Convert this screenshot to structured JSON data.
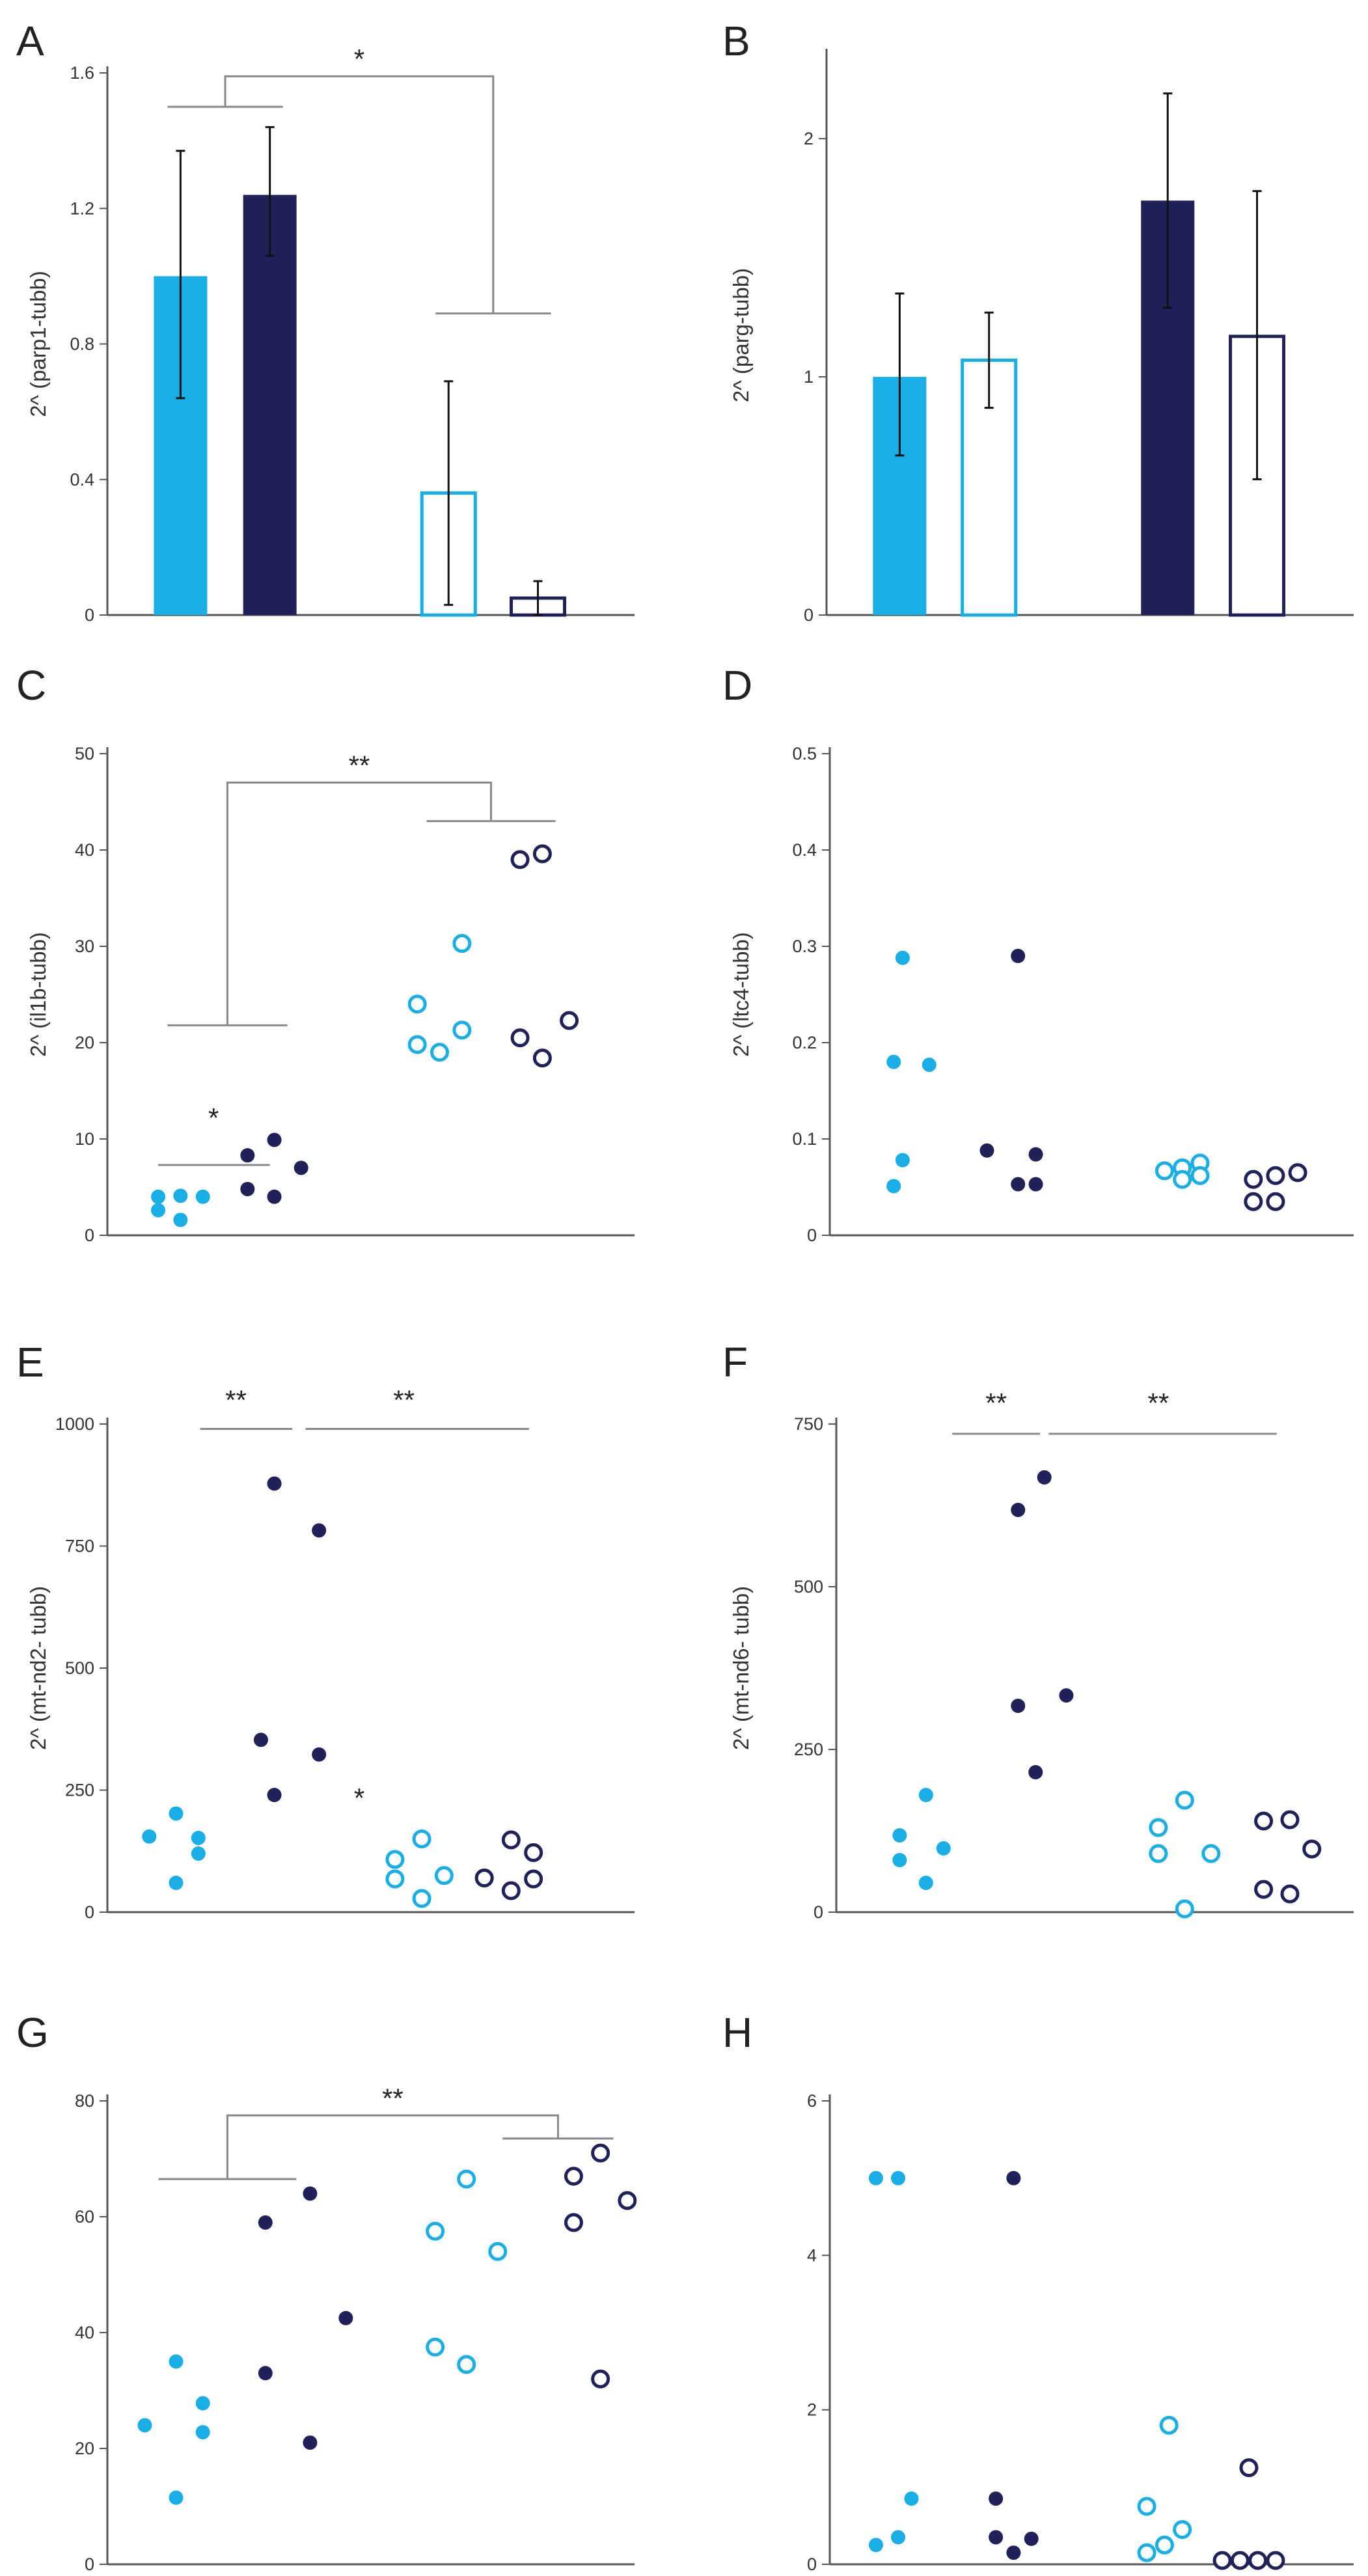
{
  "colors": {
    "light": "#1aaee6",
    "dark": "#1f2158",
    "axis": "#555555",
    "bracket": "#888888",
    "error": "#111111"
  },
  "panels": [
    {
      "letter": "A",
      "type": "bar",
      "ylabel": "2^ (parp1-tubb)",
      "ylim": [
        0,
        1.6
      ],
      "ticks": [
        {
          "v": 0,
          "t": "0"
        },
        {
          "v": 0.4,
          "t": "0.4"
        },
        {
          "v": 0.8,
          "t": "0.8"
        },
        {
          "v": 1.2,
          "t": "1.2"
        },
        {
          "v": 1.6,
          "t": "1.6"
        }
      ],
      "bars": [
        {
          "slot": 0.6,
          "value": 1.0,
          "err": [
            0.64,
            1.37
          ],
          "fill": "light"
        },
        {
          "slot": 1.6,
          "value": 1.24,
          "err": [
            1.06,
            1.44
          ],
          "fill": "dark"
        },
        {
          "slot": 3.6,
          "value": 0.36,
          "err": [
            0.03,
            0.69
          ],
          "fill": "none",
          "stroke": "light"
        },
        {
          "slot": 4.6,
          "value": 0.05,
          "err": [
            0.0,
            0.1
          ],
          "fill": "none",
          "stroke": "dark"
        }
      ],
      "brackets": [
        {
          "x1": 0.6,
          "x2": 1.6,
          "y": 1.5,
          "x3": 3.6,
          "x4": 4.6,
          "y2": 0.89,
          "top": 1.59,
          "label": "*"
        }
      ],
      "lines": []
    },
    {
      "letter": "B",
      "type": "bar",
      "ylabel": "2^ (parg-tubb)",
      "ylim": [
        0,
        2.35
      ],
      "ticks": [
        {
          "v": 0,
          "t": "0"
        },
        {
          "v": 1,
          "t": "1"
        },
        {
          "v": 2,
          "t": "2"
        }
      ],
      "bars": [
        {
          "slot": 0.6,
          "value": 1.0,
          "err": [
            0.67,
            1.35
          ],
          "fill": "light"
        },
        {
          "slot": 1.6,
          "value": 1.07,
          "err": [
            0.87,
            1.27
          ],
          "fill": "none",
          "stroke": "light"
        },
        {
          "slot": 3.6,
          "value": 1.74,
          "err": [
            1.29,
            2.19
          ],
          "fill": "dark"
        },
        {
          "slot": 4.6,
          "value": 1.17,
          "err": [
            0.57,
            1.78
          ],
          "fill": "none",
          "stroke": "dark"
        }
      ],
      "brackets": [],
      "lines": []
    },
    {
      "letter": "C",
      "type": "scatter",
      "ylabel": "2^ (il1b-tubb)",
      "ylim": [
        0,
        50
      ],
      "ticks": [
        {
          "v": 0,
          "t": "0"
        },
        {
          "v": 10,
          "t": "10"
        },
        {
          "v": 20,
          "t": "20"
        },
        {
          "v": 30,
          "t": "30"
        },
        {
          "v": 40,
          "t": "40"
        },
        {
          "v": 50,
          "t": "50"
        }
      ],
      "groups": [
        {
          "style": "light-filled",
          "points": [
            [
              0.35,
              4.0
            ],
            [
              0.35,
              2.6
            ],
            [
              0.6,
              4.1
            ],
            [
              0.6,
              1.6
            ],
            [
              0.85,
              4.0
            ]
          ]
        },
        {
          "style": "dark-filled",
          "points": [
            [
              1.35,
              8.3
            ],
            [
              1.35,
              4.8
            ],
            [
              1.65,
              9.9
            ],
            [
              1.65,
              4.0
            ],
            [
              1.95,
              7.0
            ]
          ]
        },
        {
          "style": "light-open",
          "points": [
            [
              3.25,
              24.0
            ],
            [
              3.25,
              19.8
            ],
            [
              3.5,
              19.0
            ],
            [
              3.75,
              30.3
            ],
            [
              3.75,
              21.3
            ]
          ]
        },
        {
          "style": "dark-open",
          "points": [
            [
              4.4,
              39.0
            ],
            [
              4.65,
              39.6
            ],
            [
              4.4,
              20.5
            ],
            [
              4.65,
              18.4
            ],
            [
              4.95,
              22.3
            ]
          ]
        }
      ],
      "brackets": [
        {
          "x1": 0.6,
          "x2": 1.65,
          "y": 21.8,
          "x3": 3.5,
          "x4": 4.65,
          "y2": 43.0,
          "top": 47.0,
          "label": "**"
        }
      ],
      "lines": [
        {
          "x1": 0.35,
          "x2": 1.6,
          "y": 7.3,
          "label": "*",
          "lx": 0.97,
          "ly": 11.2
        }
      ]
    },
    {
      "letter": "D",
      "type": "scatter",
      "ylabel": "2^ (ltc4-tubb)",
      "ylim": [
        0,
        0.5
      ],
      "ticks": [
        {
          "v": 0,
          "t": "0"
        },
        {
          "v": 0.1,
          "t": "0.1"
        },
        {
          "v": 0.2,
          "t": "0.2"
        },
        {
          "v": 0.3,
          "t": "0.3"
        },
        {
          "v": 0.4,
          "t": "0.4"
        },
        {
          "v": 0.5,
          "t": "0.5"
        }
      ],
      "groups": [
        {
          "style": "light-filled",
          "points": [
            [
              0.6,
              0.288
            ],
            [
              0.5,
              0.18
            ],
            [
              0.9,
              0.177
            ],
            [
              0.6,
              0.078
            ],
            [
              0.5,
              0.051
            ]
          ]
        },
        {
          "style": "dark-filled",
          "points": [
            [
              1.9,
              0.29
            ],
            [
              1.55,
              0.088
            ],
            [
              2.1,
              0.084
            ],
            [
              1.9,
              0.053
            ],
            [
              2.1,
              0.053
            ]
          ]
        },
        {
          "style": "light-open",
          "points": [
            [
              3.55,
              0.067
            ],
            [
              3.75,
              0.07
            ],
            [
              3.95,
              0.075
            ],
            [
              3.75,
              0.058
            ],
            [
              3.95,
              0.062
            ]
          ]
        },
        {
          "style": "dark-open",
          "points": [
            [
              4.55,
              0.058
            ],
            [
              4.8,
              0.062
            ],
            [
              5.05,
              0.065
            ],
            [
              4.55,
              0.035
            ],
            [
              4.8,
              0.035
            ]
          ]
        }
      ],
      "brackets": [],
      "lines": []
    },
    {
      "letter": "E",
      "type": "scatter",
      "ylabel": "2^ (mt-nd2- tubb)",
      "ylim": [
        0,
        1000
      ],
      "ticks": [
        {
          "v": 0,
          "t": "0"
        },
        {
          "v": 250,
          "t": "250"
        },
        {
          "v": 500,
          "t": "500"
        },
        {
          "v": 750,
          "t": "750"
        },
        {
          "v": 1000,
          "t": "1000"
        }
      ],
      "groups": [
        {
          "style": "light-filled",
          "points": [
            [
              0.25,
              155
            ],
            [
              0.55,
              202
            ],
            [
              0.8,
              152
            ],
            [
              0.8,
              120
            ],
            [
              0.55,
              60
            ]
          ]
        },
        {
          "style": "dark-filled",
          "points": [
            [
              1.65,
              878
            ],
            [
              2.15,
              782
            ],
            [
              1.5,
              353
            ],
            [
              2.15,
              323
            ],
            [
              1.65,
              240
            ]
          ]
        },
        {
          "style": "light-open",
          "points": [
            [
              3.0,
              108
            ],
            [
              3.0,
              68
            ],
            [
              3.3,
              150
            ],
            [
              3.3,
              28
            ],
            [
              3.55,
              75
            ]
          ]
        },
        {
          "style": "dark-open",
          "points": [
            [
              4.3,
              148
            ],
            [
              4.55,
              122
            ],
            [
              4.0,
              70
            ],
            [
              4.3,
              44
            ],
            [
              4.55,
              68
            ]
          ]
        }
      ],
      "brackets": [],
      "lines": [
        {
          "x1": 0.82,
          "x2": 1.85,
          "y": 990,
          "label": "**",
          "lx": 1.22,
          "ly": 1030
        },
        {
          "x1": 2.0,
          "x2": 4.5,
          "y": 990,
          "label": "**",
          "lx": 3.1,
          "ly": 1030
        }
      ],
      "notes": [
        {
          "x": 2.6,
          "y": 215,
          "text": "*"
        }
      ]
    },
    {
      "letter": "F",
      "type": "scatter",
      "ylabel": "2^ (mt-nd6- tubb)",
      "ylim": [
        0,
        750
      ],
      "ticks": [
        {
          "v": 0,
          "t": "0"
        },
        {
          "v": 250,
          "t": "250"
        },
        {
          "v": 500,
          "t": "500"
        },
        {
          "v": 750,
          "t": "750"
        }
      ],
      "groups": [
        {
          "style": "light-filled",
          "points": [
            [
              0.5,
              118
            ],
            [
              0.8,
              180
            ],
            [
              0.5,
              80
            ],
            [
              1.0,
              98
            ],
            [
              0.8,
              45
            ]
          ]
        },
        {
          "style": "dark-filled",
          "points": [
            [
              1.85,
              618
            ],
            [
              2.15,
              668
            ],
            [
              1.85,
              317
            ],
            [
              2.4,
              333
            ],
            [
              2.05,
              215
            ]
          ]
        },
        {
          "style": "light-open",
          "points": [
            [
              3.45,
              130
            ],
            [
              3.75,
              172
            ],
            [
              3.45,
              90
            ],
            [
              4.05,
              90
            ],
            [
              3.75,
              5
            ]
          ]
        },
        {
          "style": "dark-open",
          "points": [
            [
              4.65,
              140
            ],
            [
              4.95,
              142
            ],
            [
              5.2,
              97
            ],
            [
              4.65,
              35
            ],
            [
              4.95,
              28
            ]
          ]
        }
      ],
      "brackets": [],
      "lines": [
        {
          "x1": 1.1,
          "x2": 2.1,
          "y": 735,
          "label": "**",
          "lx": 1.6,
          "ly": 768
        },
        {
          "x1": 2.2,
          "x2": 4.8,
          "y": 735,
          "label": "**",
          "lx": 3.45,
          "ly": 768
        }
      ]
    },
    {
      "letter": "G",
      "type": "scatter",
      "ylabel": "",
      "ylim": [
        0,
        80
      ],
      "ticks": [
        {
          "v": 0,
          "t": "0"
        },
        {
          "v": 20,
          "t": "20"
        },
        {
          "v": 40,
          "t": "40"
        },
        {
          "v": 60,
          "t": "60"
        },
        {
          "v": 80,
          "t": "80"
        }
      ],
      "groups": [
        {
          "style": "light-filled",
          "points": [
            [
              0.55,
              35.0
            ],
            [
              0.55,
              11.5
            ],
            [
              0.2,
              24.0
            ],
            [
              0.85,
              27.8
            ],
            [
              0.85,
              22.8
            ]
          ]
        },
        {
          "style": "dark-filled",
          "points": [
            [
              1.55,
              59.0
            ],
            [
              2.05,
              64.0
            ],
            [
              1.55,
              33.0
            ],
            [
              2.05,
              21.0
            ],
            [
              2.45,
              42.5
            ]
          ]
        },
        {
          "style": "light-open",
          "points": [
            [
              3.45,
              57.5
            ],
            [
              3.8,
              66.5
            ],
            [
              4.15,
              54.0
            ],
            [
              3.45,
              37.5
            ],
            [
              3.8,
              34.5
            ]
          ]
        },
        {
          "style": "dark-open",
          "points": [
            [
              5.0,
              67.0
            ],
            [
              5.3,
              71.0
            ],
            [
              5.0,
              59.0
            ],
            [
              5.6,
              62.8
            ],
            [
              5.3,
              32.0
            ]
          ]
        }
      ],
      "brackets": [
        {
          "x1": 0.5,
          "x2": 1.75,
          "y": 66.5,
          "x3": 4.35,
          "x4": 5.3,
          "y2": 73.5,
          "top": 77.5,
          "label": "**"
        }
      ],
      "lines": []
    },
    {
      "letter": "H",
      "type": "scatter",
      "ylabel": "",
      "ylim": [
        0,
        6
      ],
      "ticks": [
        {
          "v": 0,
          "t": "0"
        },
        {
          "v": 2,
          "t": "2"
        },
        {
          "v": 4,
          "t": "4"
        },
        {
          "v": 6,
          "t": "6"
        }
      ],
      "groups": [
        {
          "style": "light-filled",
          "points": [
            [
              0.3,
              5.0
            ],
            [
              0.55,
              5.0
            ],
            [
              0.7,
              0.85
            ],
            [
              0.55,
              0.35
            ],
            [
              0.3,
              0.25
            ]
          ]
        },
        {
          "style": "dark-filled",
          "points": [
            [
              1.85,
              5.0
            ],
            [
              1.65,
              0.85
            ],
            [
              1.65,
              0.35
            ],
            [
              2.05,
              0.33
            ],
            [
              1.85,
              0.15
            ]
          ]
        },
        {
          "style": "light-open",
          "points": [
            [
              3.6,
              1.8
            ],
            [
              3.35,
              0.75
            ],
            [
              3.75,
              0.45
            ],
            [
              3.55,
              0.25
            ],
            [
              3.35,
              0.15
            ]
          ]
        },
        {
          "style": "dark-open",
          "points": [
            [
              4.5,
              1.25
            ],
            [
              4.2,
              0.05
            ],
            [
              4.4,
              0.05
            ],
            [
              4.6,
              0.05
            ],
            [
              4.8,
              0.05
            ]
          ]
        }
      ],
      "brackets": [],
      "lines": []
    }
  ]
}
